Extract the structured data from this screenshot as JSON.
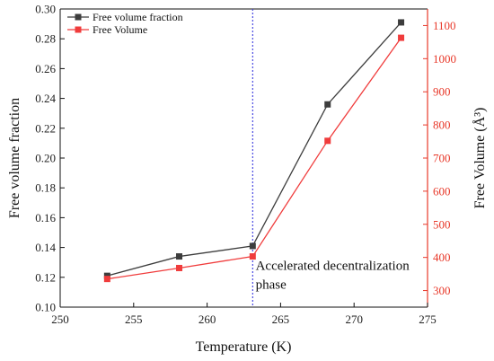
{
  "chart_data": {
    "type": "line",
    "x": [
      253.2,
      258.1,
      263.1,
      268.2,
      273.2
    ],
    "xlabel": "Temperature (K)",
    "xlim": [
      250,
      275
    ],
    "xticks": [
      "250",
      "255",
      "260",
      "265",
      "270",
      "275"
    ],
    "ylabel_left": "Free volume fraction",
    "ylim_left": [
      0.1,
      0.3
    ],
    "yticks_left": [
      "0.10",
      "0.12",
      "0.14",
      "0.16",
      "0.18",
      "0.20",
      "0.22",
      "0.24",
      "0.26",
      "0.28",
      "0.30"
    ],
    "ylabel_right": "Free Volume (Å³)",
    "ylim_right": [
      250,
      1150
    ],
    "yticks_right": [
      "300",
      "400",
      "500",
      "600",
      "700",
      "800",
      "900",
      "1000",
      "1100"
    ],
    "series": [
      {
        "name": "Free volume fraction",
        "axis": "left",
        "color": "#3d3d3d",
        "marker": "square",
        "values": [
          0.121,
          0.134,
          0.141,
          0.236,
          0.291
        ]
      },
      {
        "name": "Free Volume",
        "axis": "right",
        "color": "#f03c3c",
        "marker": "square",
        "values": [
          335,
          368,
          403,
          752,
          1063
        ]
      }
    ],
    "vline": {
      "x": 263.1,
      "color": "#3a3adf",
      "style": "dotted"
    },
    "annotation": {
      "line1": "Accelerated decentralization",
      "line2": "phase",
      "x": 263.3,
      "y_left": 0.125
    },
    "legend": {
      "position": "top-left"
    },
    "right_axis_color": "#e8392a",
    "grid": false
  }
}
